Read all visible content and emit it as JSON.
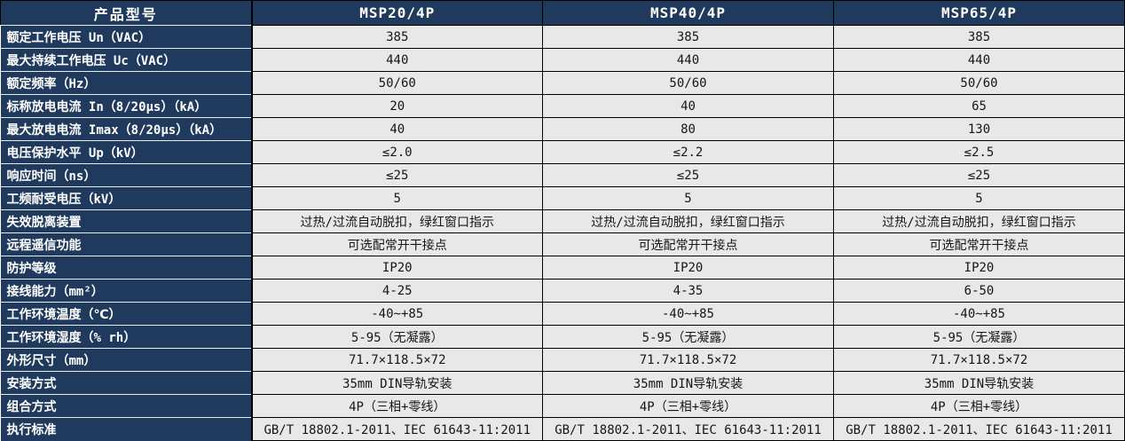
{
  "colors": {
    "header_bg": "#1f3a5c",
    "header_text": "#ffffff",
    "cell_bg": "#e8e8e8",
    "cell_text": "#161616",
    "cell_border": "#000000",
    "label_separator": "#e9edf2"
  },
  "table": {
    "header": {
      "label": "产品型号",
      "columns": [
        "MSP20/4P",
        "MSP40/4P",
        "MSP65/4P"
      ]
    },
    "rows": [
      {
        "label": "额定工作电压 Un（VAC）",
        "values": [
          "385",
          "385",
          "385"
        ]
      },
      {
        "label": "最大持续工作电压 Uc（VAC）",
        "values": [
          "440",
          "440",
          "440"
        ]
      },
      {
        "label": "额定频率（Hz）",
        "values": [
          "50/60",
          "50/60",
          "50/60"
        ]
      },
      {
        "label": "标称放电电流 In（8/20μs）（kA）",
        "values": [
          "20",
          "40",
          "65"
        ]
      },
      {
        "label": "最大放电电流 Imax（8/20μs）（kA）",
        "values": [
          "40",
          "80",
          "130"
        ]
      },
      {
        "label": "电压保护水平 Up（kV）",
        "values": [
          "≤2.0",
          "≤2.2",
          "≤2.5"
        ]
      },
      {
        "label": "响应时间（ns）",
        "values": [
          "≤25",
          "≤25",
          "≤25"
        ]
      },
      {
        "label": "工频耐受电压（kV）",
        "values": [
          "5",
          "5",
          "5"
        ]
      },
      {
        "label": "失效脱离装置",
        "values": [
          "过热/过流自动脱扣，绿红窗口指示",
          "过热/过流自动脱扣，绿红窗口指示",
          "过热/过流自动脱扣，绿红窗口指示"
        ]
      },
      {
        "label": "远程遥信功能",
        "values": [
          "可选配常开干接点",
          "可选配常开干接点",
          "可选配常开干接点"
        ]
      },
      {
        "label": "防护等级",
        "values": [
          "IP20",
          "IP20",
          "IP20"
        ]
      },
      {
        "label": "接线能力（mm²）",
        "values": [
          "4-25",
          "4-35",
          "6-50"
        ]
      },
      {
        "label": "工作环境温度（℃）",
        "values": [
          "-40~+85",
          "-40~+85",
          "-40~+85"
        ]
      },
      {
        "label": "工作环境湿度（% rh）",
        "values": [
          "5-95（无凝露）",
          "5-95（无凝露）",
          "5-95（无凝露）"
        ]
      },
      {
        "label": "外形尺寸（mm）",
        "values": [
          "71.7×118.5×72",
          "71.7×118.5×72",
          "71.7×118.5×72"
        ]
      },
      {
        "label": "安装方式",
        "values": [
          "35mm DIN导轨安装",
          "35mm DIN导轨安装",
          "35mm DIN导轨安装"
        ]
      },
      {
        "label": "组合方式",
        "values": [
          "4P（三相+零线）",
          "4P（三相+零线）",
          "4P（三相+零线）"
        ]
      },
      {
        "label": "执行标准",
        "values": [
          "GB/T 18802.1-2011、IEC 61643-11:2011",
          "GB/T 18802.1-2011、IEC 61643-11:2011",
          "GB/T 18802.1-2011、IEC 61643-11:2011"
        ]
      }
    ]
  }
}
